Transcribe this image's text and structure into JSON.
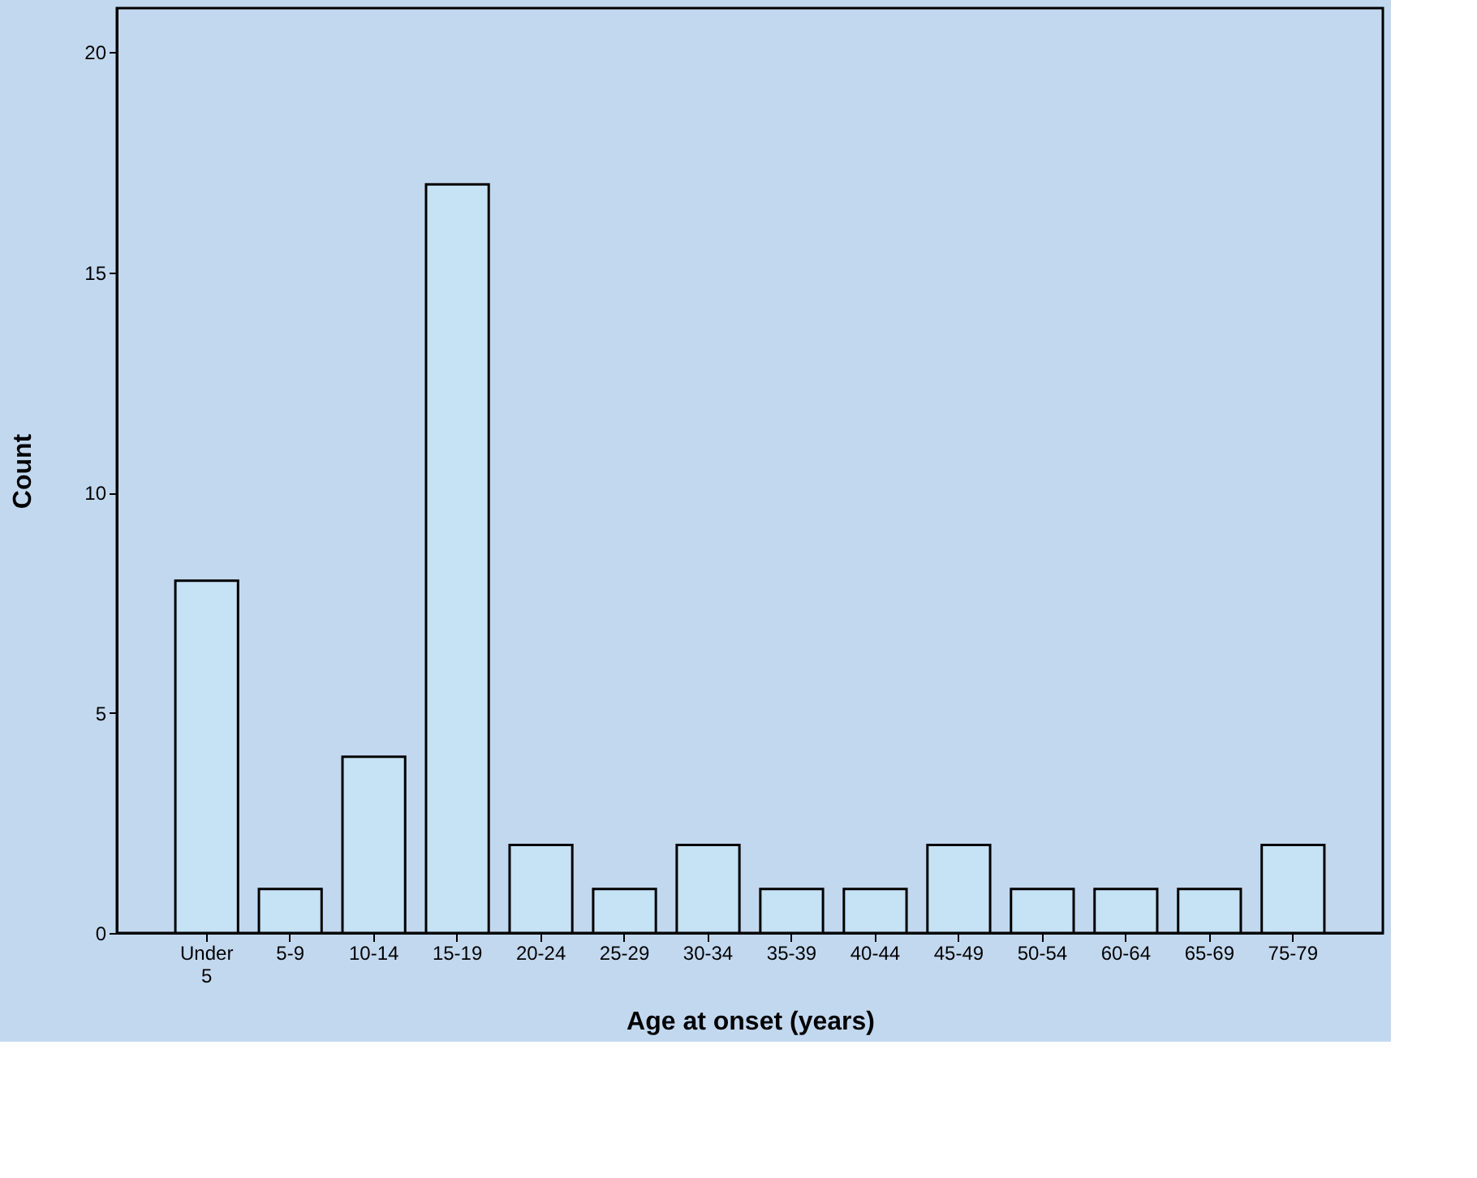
{
  "chart_data": {
    "type": "bar",
    "xlabel": "Age at onset (years)",
    "ylabel": "Count",
    "categories": [
      "Under 5",
      "5-9",
      "10-14",
      "15-19",
      "20-24",
      "25-29",
      "30-34",
      "35-39",
      "40-44",
      "45-49",
      "50-54",
      "60-64",
      "65-69",
      "75-79"
    ],
    "values": [
      8,
      1,
      4,
      17,
      2,
      1,
      2,
      1,
      1,
      2,
      1,
      1,
      1,
      2
    ],
    "color": "#c6e2f5",
    "ylim": [
      0,
      21
    ],
    "yticks": [
      0,
      5,
      10,
      15,
      20
    ],
    "grid": false
  }
}
